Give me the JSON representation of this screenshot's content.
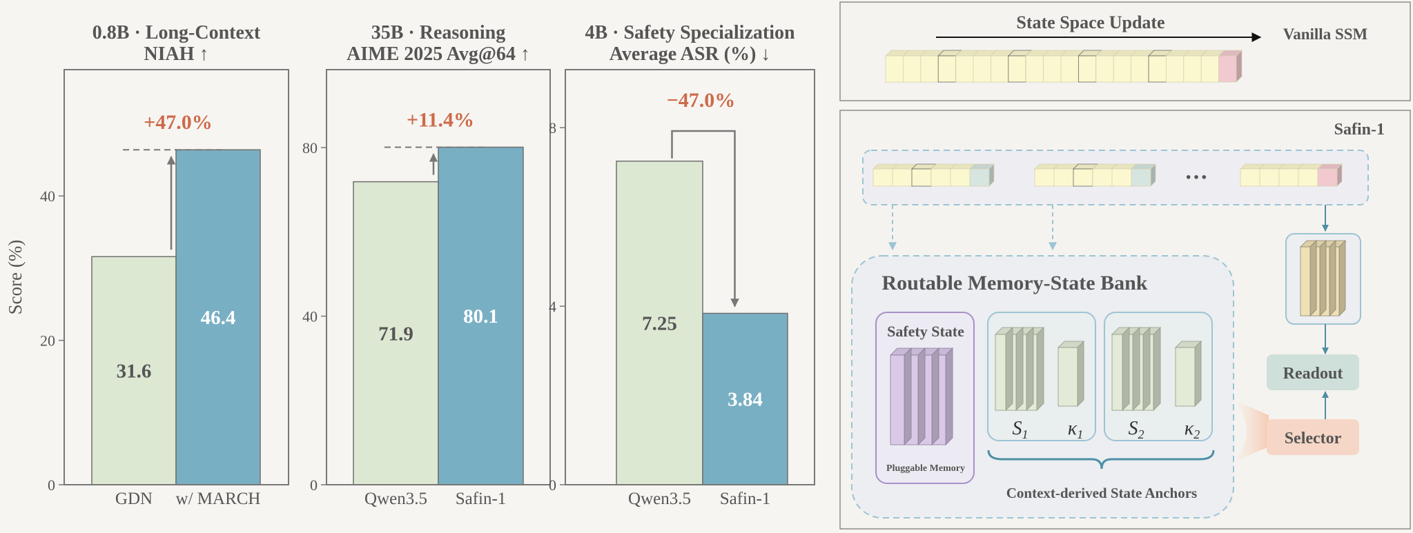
{
  "chart_data": [
    {
      "type": "bar",
      "title": [
        "0.8B · Long-Context",
        "NIAH ↑"
      ],
      "categories": [
        "GDN",
        "w/ MARCH"
      ],
      "values": [
        31.6,
        46.4
      ],
      "value_labels": [
        "31.6",
        "46.4"
      ],
      "ylabel": "Score (%)",
      "ylim": [
        0,
        57.5
      ],
      "yticks": [
        0,
        20,
        40
      ],
      "delta_label": "+47.0%",
      "colors": [
        "#dde8d3",
        "#79afc3"
      ]
    },
    {
      "type": "bar",
      "title": [
        "35B · Reasoning",
        "AIME 2025 Avg@64 ↑"
      ],
      "categories": [
        "Qwen3.5",
        "Safin-1"
      ],
      "values": [
        71.9,
        80.1
      ],
      "value_labels": [
        "71.9",
        "80.1"
      ],
      "ylim": [
        0,
        98.5
      ],
      "yticks": [
        0,
        40,
        80
      ],
      "delta_label": "+11.4%",
      "colors": [
        "#dde8d3",
        "#79afc3"
      ]
    },
    {
      "type": "bar",
      "title": [
        "4B · Safety Specialization",
        "Average ASR (%) ↓"
      ],
      "categories": [
        "Qwen3.5",
        "Safin-1"
      ],
      "values": [
        7.25,
        3.84
      ],
      "value_labels": [
        "7.25",
        "3.84"
      ],
      "ylim": [
        0,
        9.3
      ],
      "yticks": [
        0,
        4,
        8
      ],
      "delta_label": "−47.0%",
      "colors": [
        "#dde8d3",
        "#79afc3"
      ]
    }
  ],
  "diagram": {
    "top_panel": {
      "arrow_label": "State Space Update",
      "model_label": "Vanilla SSM"
    },
    "bottom_panel": {
      "model_label": "Safin-1",
      "ellipsis": "···",
      "bank_title": "Routable Memory-State Bank",
      "safety_title": "Safety State",
      "safety_caption": "Pluggable Memory",
      "anchors": [
        {
          "state": "S",
          "state_sub": "1",
          "key": "κ",
          "key_sub": "1"
        },
        {
          "state": "S",
          "state_sub": "2",
          "key": "κ",
          "key_sub": "2"
        }
      ],
      "anchors_caption": "Context-derived State Anchors",
      "readout_label": "Readout",
      "selector_label": "Selector"
    }
  },
  "colors": {
    "green_bar": "#dde8d3",
    "blue_bar": "#79afc3",
    "delta": "#cc6b4a",
    "token_yellow": "#fbf8cf",
    "token_pink": "#f1c9cf",
    "token_teal": "#d6e5e0",
    "purple": "#a98fc9",
    "readout": "#cfdfd9",
    "selector": "#f6d6c6"
  }
}
